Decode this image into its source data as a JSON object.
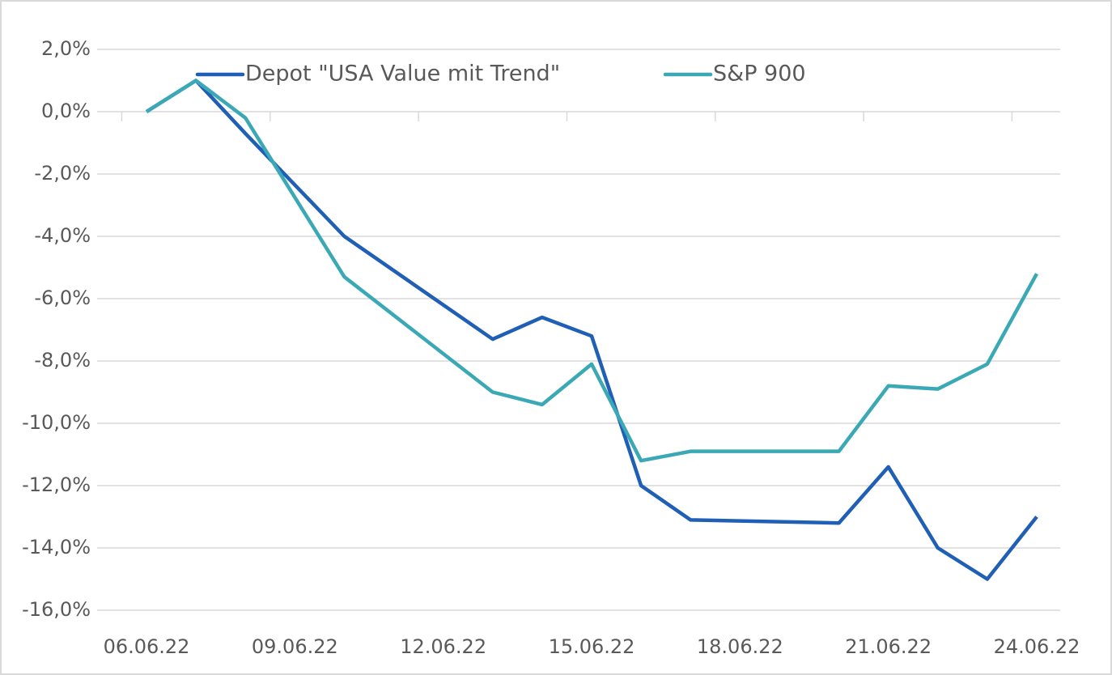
{
  "chart_data": {
    "type": "line",
    "x": [
      "06.06.22",
      "07.06.22",
      "08.06.22",
      "10.06.22",
      "13.06.22",
      "14.06.22",
      "15.06.22",
      "16.06.22",
      "17.06.22",
      "20.06.22",
      "21.06.22",
      "22.06.22",
      "23.06.22",
      "24.06.22"
    ],
    "series": [
      {
        "name": "Depot \"USA Value mit Trend\"",
        "color": "#1f5fb5",
        "values": [
          0,
          1.0,
          -0.7,
          -4.0,
          -7.3,
          -6.6,
          -7.2,
          -12.0,
          -13.1,
          -13.2,
          -11.4,
          -14.0,
          -15.0,
          -13.0
        ]
      },
      {
        "name": "S&P 900",
        "color": "#3aa9b5",
        "values": [
          0,
          1.0,
          -0.2,
          -5.3,
          -9.0,
          -9.4,
          -8.1,
          -11.2,
          -10.9,
          -10.9,
          -8.8,
          -8.9,
          -8.1,
          -5.2
        ]
      }
    ],
    "ylim": [
      -16,
      2
    ],
    "yticks": [
      {
        "value": 2,
        "label": "2,0%"
      },
      {
        "value": 0,
        "label": "0,0%"
      },
      {
        "value": -2,
        "label": "-2,0%"
      },
      {
        "value": -4,
        "label": "-4,0%"
      },
      {
        "value": -6,
        "label": "-6,0%"
      },
      {
        "value": -8,
        "label": "-8,0%"
      },
      {
        "value": -10,
        "label": "-10,0%"
      },
      {
        "value": -12,
        "label": "-12,0%"
      },
      {
        "value": -14,
        "label": "-14,0%"
      },
      {
        "value": -16,
        "label": "-16,0%"
      }
    ],
    "xticks": [
      "06.06.22",
      "09.06.22",
      "12.06.22",
      "15.06.22",
      "18.06.22",
      "21.06.22",
      "24.06.22"
    ],
    "grid": true,
    "legend": "top"
  }
}
